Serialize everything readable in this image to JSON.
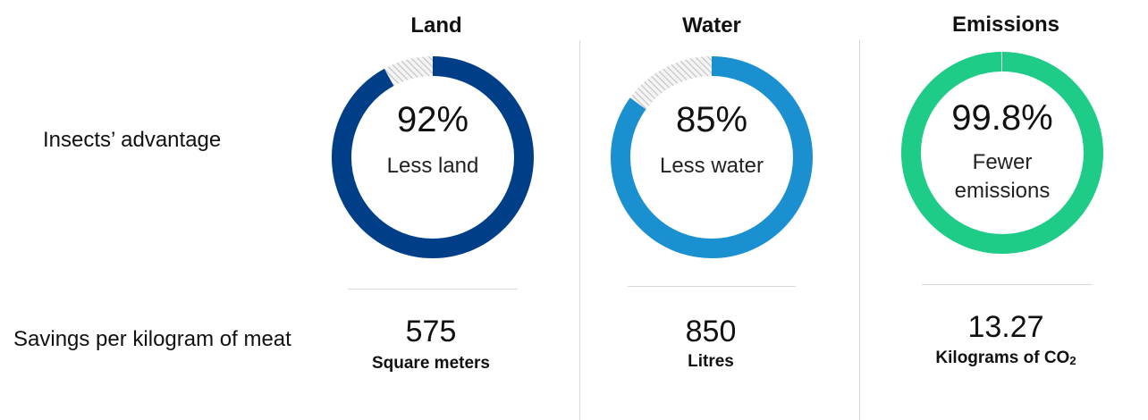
{
  "row_labels": {
    "advantage": "Insects’ advantage",
    "savings": "Savings per kilogram of meat"
  },
  "colors": {
    "land": "#003f88",
    "water": "#1a90d0",
    "emissions": "#1ecb87",
    "remainder_hatch": "#c8c8c8"
  },
  "chart_data": {
    "type": "pie",
    "charts": [
      {
        "title": "Land",
        "percent_label": "92%",
        "value": 92,
        "sublabel": "Less land",
        "saving_value": "575",
        "saving_unit": "Square meters",
        "color": "#003f88"
      },
      {
        "title": "Water",
        "percent_label": "85%",
        "value": 85,
        "sublabel": "Less water",
        "saving_value": "850",
        "saving_unit": "Litres",
        "color": "#1a90d0"
      },
      {
        "title": "Emissions",
        "percent_label": "99.8%",
        "value": 99.8,
        "sublabel": "Fewer emissions",
        "saving_value": "13.27",
        "saving_unit": "Kilograms of CO",
        "saving_unit_sub": "2",
        "color": "#1ecb87"
      }
    ]
  }
}
